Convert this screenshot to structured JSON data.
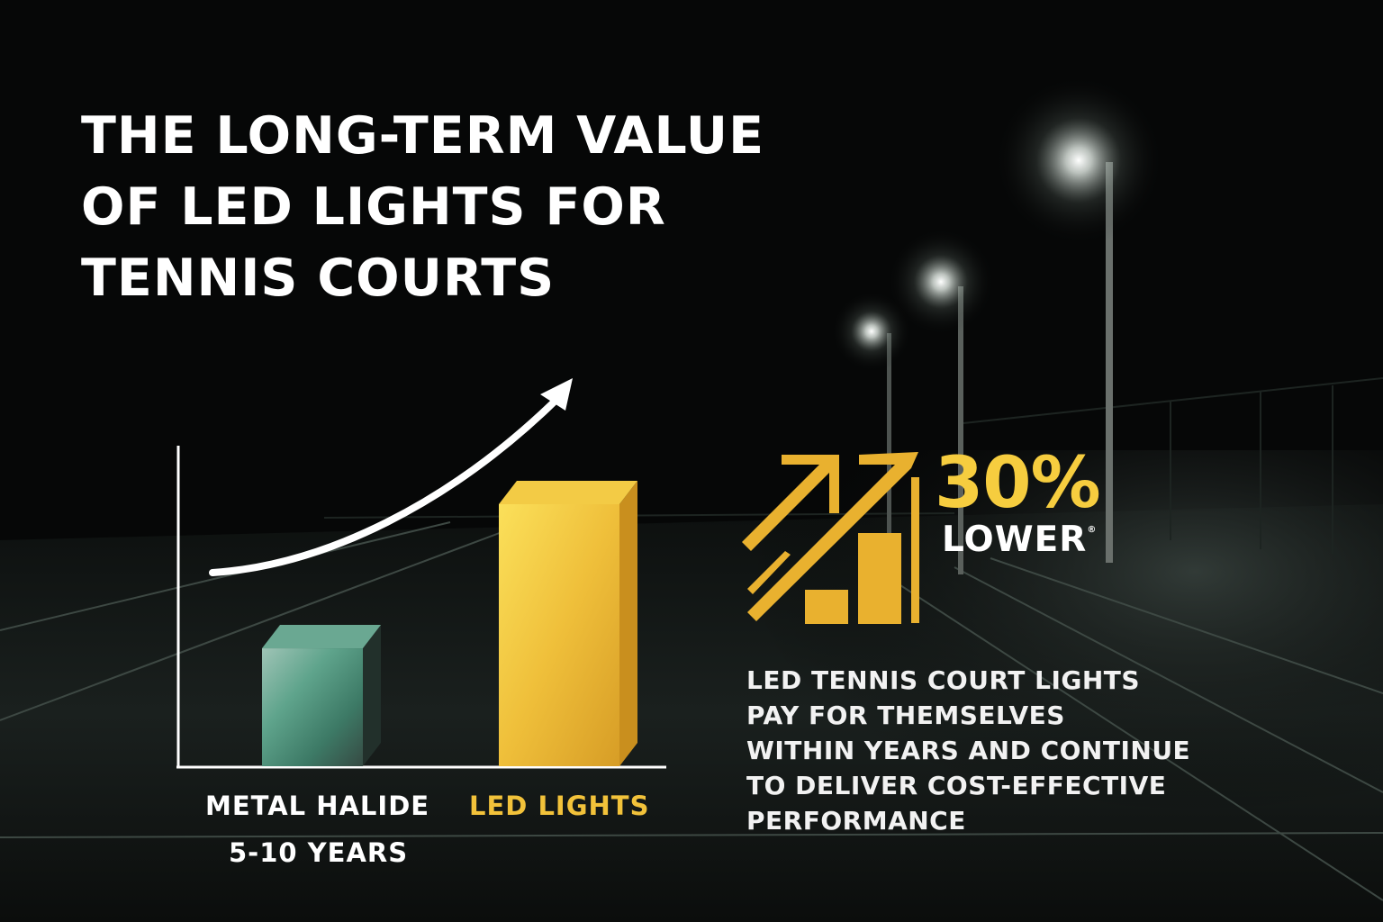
{
  "title": {
    "lines": [
      "THE LONG-TERM VALUE",
      "OF LED LIGHTS FOR",
      "TENNIS COURTS"
    ]
  },
  "chart_data": {
    "type": "bar",
    "title": "",
    "xlabel": "",
    "ylabel": "",
    "categories": [
      "METAL HALIDE",
      "LED LIGHTS"
    ],
    "values": [
      0.45,
      1.0
    ],
    "sublabels": [
      "5-10 YEARS",
      ""
    ],
    "colors": [
      "#4e9a82",
      "#f2c23a"
    ],
    "style": "3d-bars",
    "grid": false,
    "axis_ticks": false,
    "trend_arrow": "rising curve"
  },
  "callout": {
    "value": "30%",
    "label": "LOWER",
    "mark": "®",
    "icon": "rising-arrows-bar-chart-icon",
    "color": "#f6cd3f"
  },
  "description": {
    "lines": [
      "LED TENNIS COURT LIGHTS",
      "PAY FOR THEMSELVES",
      "WITHIN YEARS AND CONTINUE",
      "TO DELIVER COST-EFFECTIVE",
      "PERFORMANCE"
    ]
  },
  "colors": {
    "background": "#060707",
    "accent": "#f6cd3f",
    "text": "#ffffff"
  }
}
